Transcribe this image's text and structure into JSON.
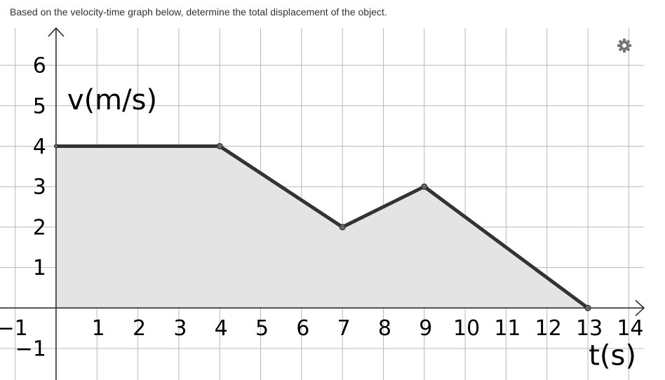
{
  "question": "Based on the velocity-time graph below, determine the total displacement of the object.",
  "chart_data": {
    "type": "line",
    "x_label": "t(s)",
    "y_label": "v(m/s)",
    "x": [
      0,
      4,
      7,
      9,
      13
    ],
    "series": [
      {
        "color": "#333333",
        "fill": "#e4e4e4",
        "values": [
          4,
          4,
          2,
          3,
          0
        ]
      }
    ],
    "xlim": [
      -1.37,
      14.37
    ],
    "ylim": [
      -1.78,
      6.92
    ],
    "xticks": [
      {
        "value": -1,
        "label": "−1"
      },
      1,
      2,
      3,
      4,
      5,
      6,
      7,
      8,
      9,
      10,
      11,
      12,
      13,
      14
    ],
    "yticks": [
      {
        "value": -1,
        "label": "−1"
      },
      1,
      2,
      3,
      4,
      5,
      6
    ],
    "grid": true
  }
}
